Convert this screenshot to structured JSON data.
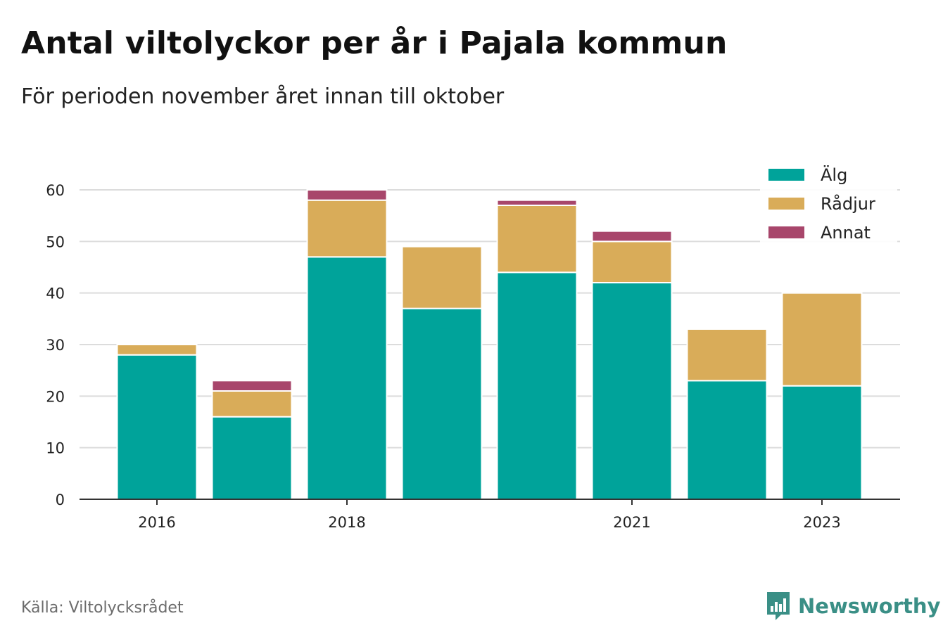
{
  "title": "Antal viltolyckor per år i Pajala kommun",
  "subtitle": "För perioden november året innan till oktober",
  "source": "Källa: Viltolycksrådet",
  "brand": "Newsworthy",
  "chart_data": {
    "type": "bar",
    "stacked": true,
    "categories": [
      "2016",
      "2017",
      "2018",
      "2019",
      "2020",
      "2021",
      "2022",
      "2023"
    ],
    "x_tick_labels": [
      "2016",
      "2018",
      "2021",
      "2023"
    ],
    "series": [
      {
        "name": "Älg",
        "color": "#00a39a",
        "values": [
          28,
          16,
          47,
          37,
          44,
          42,
          23,
          22
        ]
      },
      {
        "name": "Rådjur",
        "color": "#d9ac59",
        "values": [
          2,
          5,
          11,
          12,
          13,
          8,
          10,
          18
        ]
      },
      {
        "name": "Annat",
        "color": "#a8466b",
        "values": [
          0,
          2,
          2,
          0,
          1,
          2,
          0,
          0
        ]
      }
    ],
    "ylim": [
      0,
      60
    ],
    "yticks": [
      0,
      10,
      20,
      30,
      40,
      50,
      60
    ],
    "grid": true,
    "legend": "top-right"
  }
}
